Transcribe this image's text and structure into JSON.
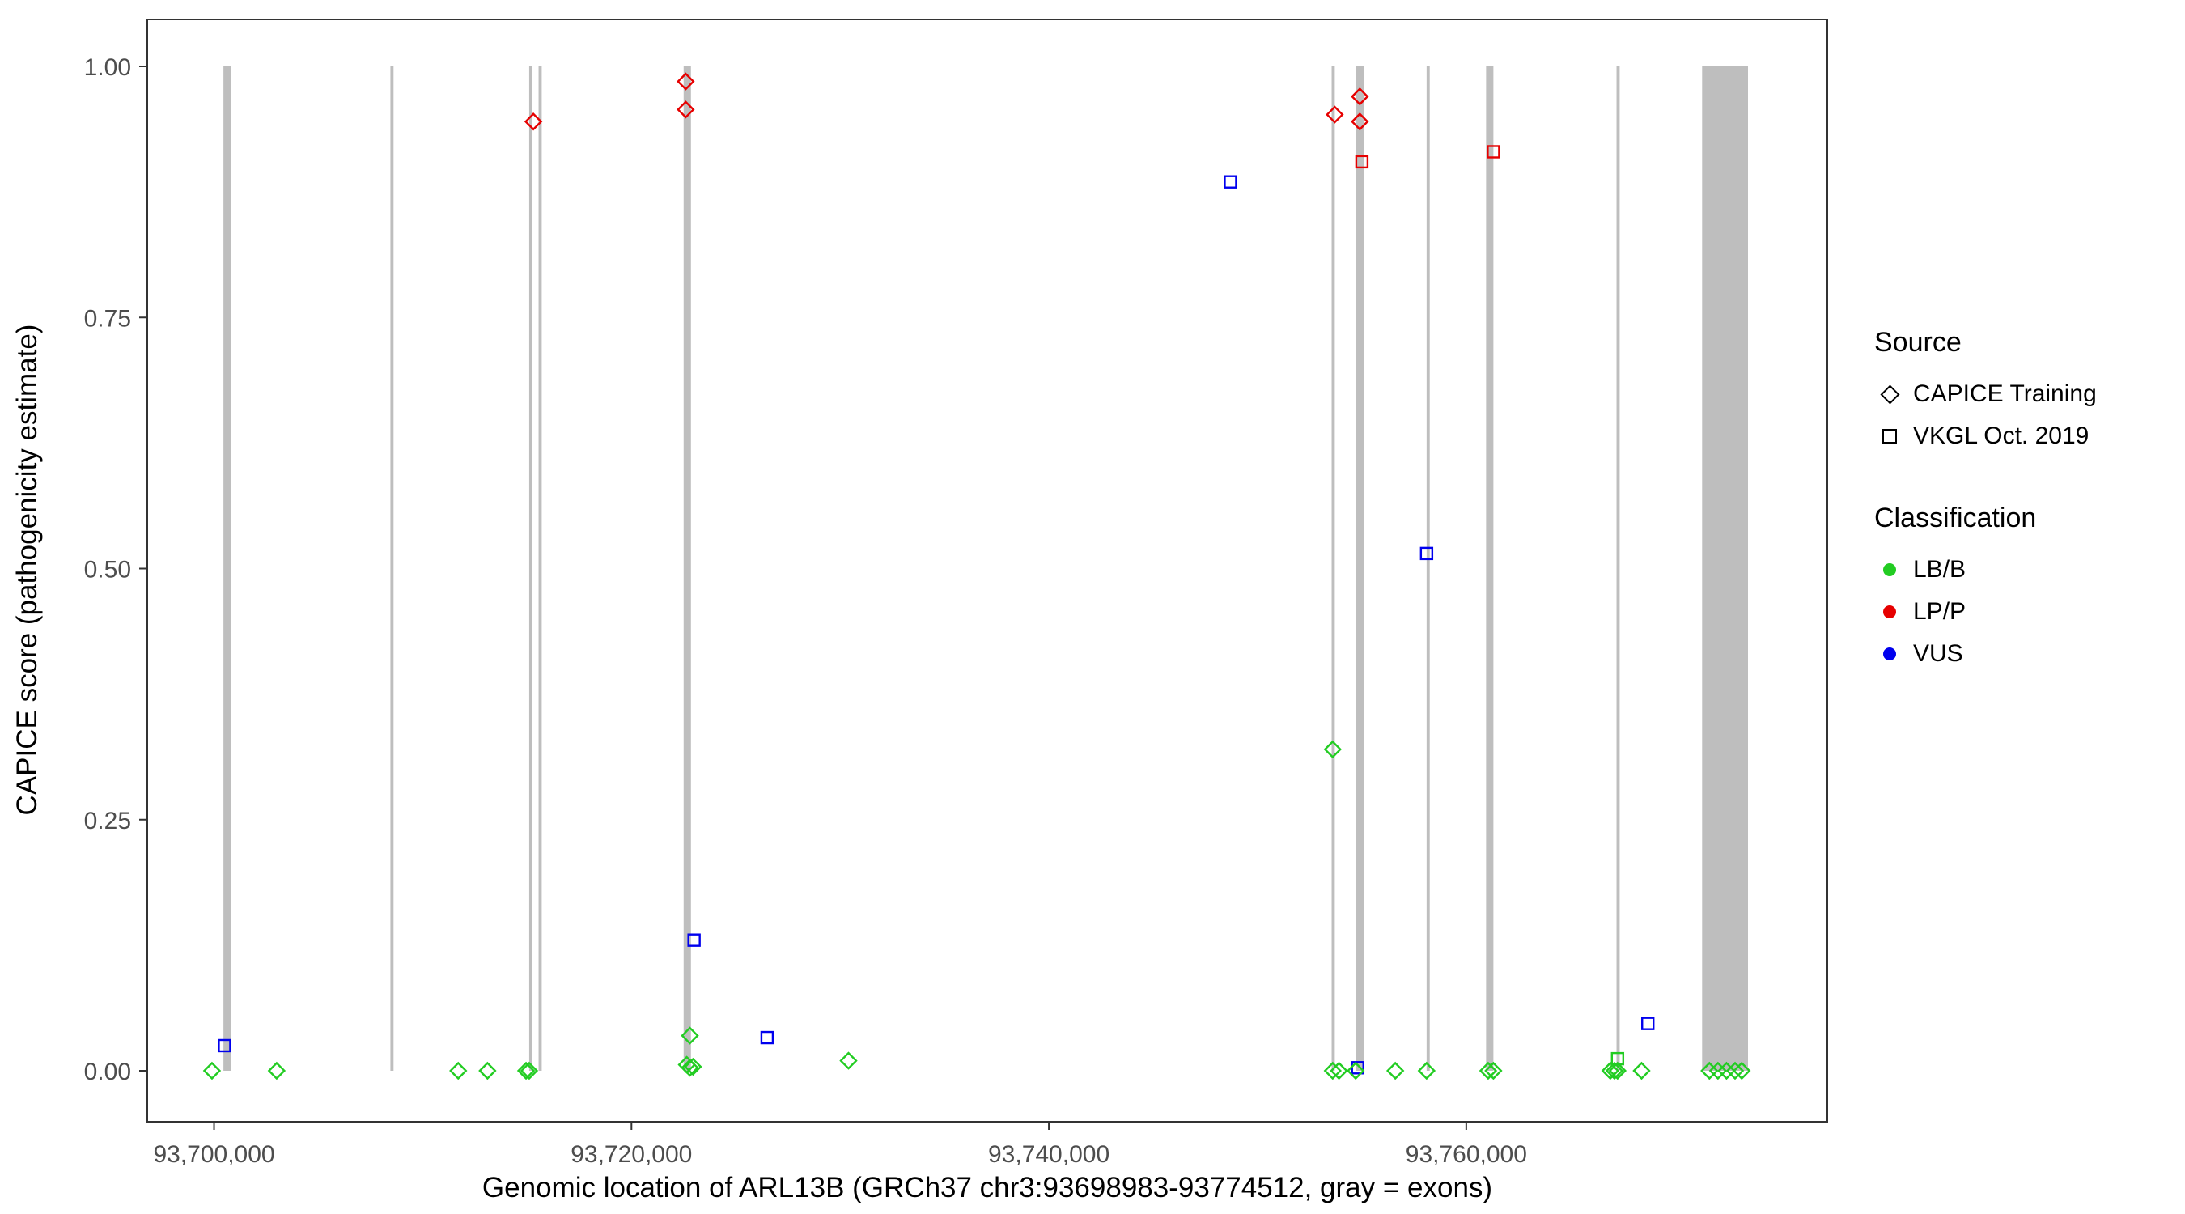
{
  "chart_data": {
    "type": "scatter",
    "title": "",
    "xlabel": "Genomic location of ARL13B (GRCh37 chr3:93698983-93774512, gray = exons)",
    "ylabel": "CAPICE score (pathogenicity estimate)",
    "x_domain": [
      93696800,
      93777300
    ],
    "y_domain": [
      0,
      1
    ],
    "grid": "off",
    "legend_position": "right",
    "x_ticks": [
      {
        "value": 93700000,
        "label": "93,700,000"
      },
      {
        "value": 93720000,
        "label": "93,720,000"
      },
      {
        "value": 93740000,
        "label": "93,740,000"
      },
      {
        "value": 93760000,
        "label": "93,760,000"
      }
    ],
    "y_ticks": [
      {
        "value": 0.0,
        "label": "0.00"
      },
      {
        "value": 0.25,
        "label": "0.25"
      },
      {
        "value": 0.5,
        "label": "0.50"
      },
      {
        "value": 0.75,
        "label": "0.75"
      },
      {
        "value": 1.0,
        "label": "1.00"
      }
    ],
    "exon_color": "#bebebe",
    "exons": [
      {
        "start": 93700450,
        "end": 93700800
      },
      {
        "start": 93708450,
        "end": 93708600
      },
      {
        "start": 93715100,
        "end": 93715250
      },
      {
        "start": 93715550,
        "end": 93715700
      },
      {
        "start": 93722500,
        "end": 93722850
      },
      {
        "start": 93753550,
        "end": 93753700
      },
      {
        "start": 93754700,
        "end": 93755100
      },
      {
        "start": 93758100,
        "end": 93758250
      },
      {
        "start": 93760950,
        "end": 93761300
      },
      {
        "start": 93767200,
        "end": 93767350
      },
      {
        "start": 93771300,
        "end": 93773500
      }
    ],
    "classification_colors": {
      "LB/B": "#22cc22",
      "LP/P": "#e60000",
      "VUS": "#0000ee"
    },
    "source_shapes": {
      "CAPICE Training": "diamond",
      "VKGL Oct. 2019": "square"
    },
    "points": [
      {
        "x": 93715300,
        "y": 0.945,
        "classification": "LP/P",
        "source": "CAPICE Training"
      },
      {
        "x": 93722600,
        "y": 0.985,
        "classification": "LP/P",
        "source": "CAPICE Training"
      },
      {
        "x": 93722600,
        "y": 0.957,
        "classification": "LP/P",
        "source": "CAPICE Training"
      },
      {
        "x": 93753700,
        "y": 0.952,
        "classification": "LP/P",
        "source": "CAPICE Training"
      },
      {
        "x": 93754900,
        "y": 0.97,
        "classification": "LP/P",
        "source": "CAPICE Training"
      },
      {
        "x": 93754900,
        "y": 0.945,
        "classification": "LP/P",
        "source": "CAPICE Training"
      },
      {
        "x": 93755000,
        "y": 0.905,
        "classification": "LP/P",
        "source": "VKGL Oct. 2019"
      },
      {
        "x": 93761300,
        "y": 0.915,
        "classification": "LP/P",
        "source": "VKGL Oct. 2019"
      },
      {
        "x": 93748700,
        "y": 0.885,
        "classification": "VUS",
        "source": "VKGL Oct. 2019"
      },
      {
        "x": 93758100,
        "y": 0.515,
        "classification": "VUS",
        "source": "VKGL Oct. 2019"
      },
      {
        "x": 93723000,
        "y": 0.13,
        "classification": "VUS",
        "source": "VKGL Oct. 2019"
      },
      {
        "x": 93726500,
        "y": 0.033,
        "classification": "VUS",
        "source": "VKGL Oct. 2019"
      },
      {
        "x": 93700500,
        "y": 0.025,
        "classification": "VUS",
        "source": "VKGL Oct. 2019"
      },
      {
        "x": 93768700,
        "y": 0.047,
        "classification": "VUS",
        "source": "VKGL Oct. 2019"
      },
      {
        "x": 93754800,
        "y": 0.003,
        "classification": "VUS",
        "source": "VKGL Oct. 2019"
      },
      {
        "x": 93767250,
        "y": 0.012,
        "classification": "LB/B",
        "source": "VKGL Oct. 2019"
      },
      {
        "x": 93699900,
        "y": 0.0,
        "classification": "LB/B",
        "source": "CAPICE Training"
      },
      {
        "x": 93703000,
        "y": 0.0,
        "classification": "LB/B",
        "source": "CAPICE Training"
      },
      {
        "x": 93711700,
        "y": 0.0,
        "classification": "LB/B",
        "source": "CAPICE Training"
      },
      {
        "x": 93713100,
        "y": 0.0,
        "classification": "LB/B",
        "source": "CAPICE Training"
      },
      {
        "x": 93714950,
        "y": 0.0,
        "classification": "LB/B",
        "source": "CAPICE Training"
      },
      {
        "x": 93715100,
        "y": 0.0,
        "classification": "LB/B",
        "source": "CAPICE Training"
      },
      {
        "x": 93722800,
        "y": 0.035,
        "classification": "LB/B",
        "source": "CAPICE Training"
      },
      {
        "x": 93722650,
        "y": 0.006,
        "classification": "LB/B",
        "source": "CAPICE Training"
      },
      {
        "x": 93722800,
        "y": 0.003,
        "classification": "LB/B",
        "source": "CAPICE Training"
      },
      {
        "x": 93722950,
        "y": 0.004,
        "classification": "LB/B",
        "source": "CAPICE Training"
      },
      {
        "x": 93730400,
        "y": 0.01,
        "classification": "LB/B",
        "source": "CAPICE Training"
      },
      {
        "x": 93753600,
        "y": 0.32,
        "classification": "LB/B",
        "source": "CAPICE Training"
      },
      {
        "x": 93753600,
        "y": 0.0,
        "classification": "LB/B",
        "source": "CAPICE Training"
      },
      {
        "x": 93753900,
        "y": 0.0,
        "classification": "LB/B",
        "source": "CAPICE Training"
      },
      {
        "x": 93754700,
        "y": 0.0,
        "classification": "LB/B",
        "source": "CAPICE Training"
      },
      {
        "x": 93756600,
        "y": 0.0,
        "classification": "LB/B",
        "source": "CAPICE Training"
      },
      {
        "x": 93758100,
        "y": 0.0,
        "classification": "LB/B",
        "source": "CAPICE Training"
      },
      {
        "x": 93761050,
        "y": 0.0,
        "classification": "LB/B",
        "source": "CAPICE Training"
      },
      {
        "x": 93761300,
        "y": 0.0,
        "classification": "LB/B",
        "source": "CAPICE Training"
      },
      {
        "x": 93766900,
        "y": 0.0,
        "classification": "LB/B",
        "source": "CAPICE Training"
      },
      {
        "x": 93767100,
        "y": 0.0,
        "classification": "LB/B",
        "source": "CAPICE Training"
      },
      {
        "x": 93767250,
        "y": 0.0,
        "classification": "LB/B",
        "source": "CAPICE Training"
      },
      {
        "x": 93768400,
        "y": 0.0,
        "classification": "LB/B",
        "source": "CAPICE Training"
      },
      {
        "x": 93771650,
        "y": 0.0,
        "classification": "LB/B",
        "source": "CAPICE Training"
      },
      {
        "x": 93772060,
        "y": 0.0,
        "classification": "LB/B",
        "source": "CAPICE Training"
      },
      {
        "x": 93772470,
        "y": 0.0,
        "classification": "LB/B",
        "source": "CAPICE Training"
      },
      {
        "x": 93772880,
        "y": 0.0,
        "classification": "LB/B",
        "source": "CAPICE Training"
      },
      {
        "x": 93773200,
        "y": 0.0,
        "classification": "LB/B",
        "source": "CAPICE Training"
      }
    ]
  },
  "legend": {
    "source": {
      "title": "Source",
      "items": [
        {
          "label": "CAPICE Training",
          "shape": "diamond"
        },
        {
          "label": "VKGL Oct. 2019",
          "shape": "square"
        }
      ]
    },
    "classification": {
      "title": "Classification",
      "items": [
        {
          "label": "LB/B",
          "color": "#22cc22"
        },
        {
          "label": "LP/P",
          "color": "#e60000"
        },
        {
          "label": "VUS",
          "color": "#0000ee"
        }
      ]
    }
  }
}
